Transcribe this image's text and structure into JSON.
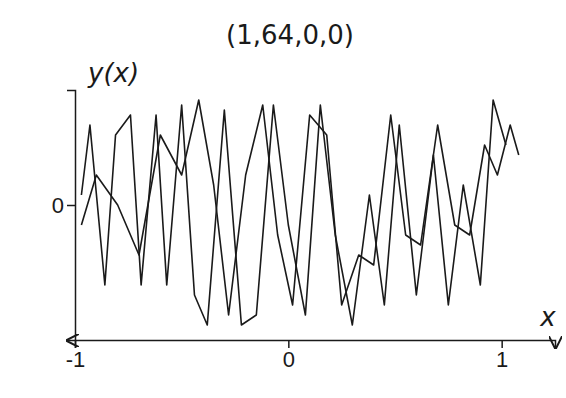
{
  "chart_data": {
    "type": "line",
    "title": "(1,64,0,0)",
    "x_label": "x",
    "y_label": "y(x)",
    "xlim": [
      -1,
      1.25
    ],
    "xticks": [
      -1,
      0,
      1
    ],
    "ylim": [
      -1.35,
      1.15
    ],
    "yticks": [
      0
    ],
    "tick_labels": true,
    "grid": false,
    "series": [
      {
        "color": "#1a1a1a",
        "x": [
          -0.97,
          -0.93,
          -0.86,
          -0.81,
          -0.74,
          -0.69,
          -0.62,
          -0.57,
          -0.5,
          -0.44,
          -0.38,
          -0.3,
          -0.22,
          -0.15,
          -0.07,
          0.0,
          0.08,
          0.15,
          0.22,
          0.3,
          0.38,
          0.45,
          0.52,
          0.6,
          0.68,
          0.75,
          0.82,
          0.9,
          0.96,
          1.02
        ],
        "values": [
          0.1,
          0.8,
          -0.8,
          0.7,
          0.9,
          -0.8,
          0.9,
          -0.8,
          1.0,
          -0.9,
          -1.2,
          0.95,
          -1.2,
          -1.1,
          1.0,
          -0.2,
          -1.1,
          1.0,
          -0.3,
          -1.2,
          0.1,
          -1.0,
          0.8,
          -0.9,
          0.5,
          -1.0,
          0.2,
          -0.8,
          1.05,
          0.6
        ]
      },
      {
        "color": "#1a1a1a",
        "x": [
          -0.97,
          -0.9,
          -0.8,
          -0.7,
          -0.6,
          -0.5,
          -0.42,
          -0.35,
          -0.28,
          -0.2,
          -0.12,
          -0.05,
          0.02,
          0.1,
          0.18,
          0.25,
          0.33,
          0.4,
          0.48,
          0.55,
          0.62,
          0.7,
          0.78,
          0.85,
          0.92,
          0.98,
          1.04,
          1.08
        ],
        "values": [
          -0.2,
          0.3,
          0.0,
          -0.5,
          0.7,
          0.3,
          1.05,
          0.2,
          -1.1,
          0.3,
          1.0,
          -0.3,
          -1.0,
          0.9,
          0.7,
          -1.0,
          -0.5,
          -0.6,
          0.9,
          -0.3,
          -0.4,
          0.8,
          -0.2,
          -0.3,
          0.6,
          0.3,
          0.8,
          0.5
        ]
      }
    ]
  }
}
